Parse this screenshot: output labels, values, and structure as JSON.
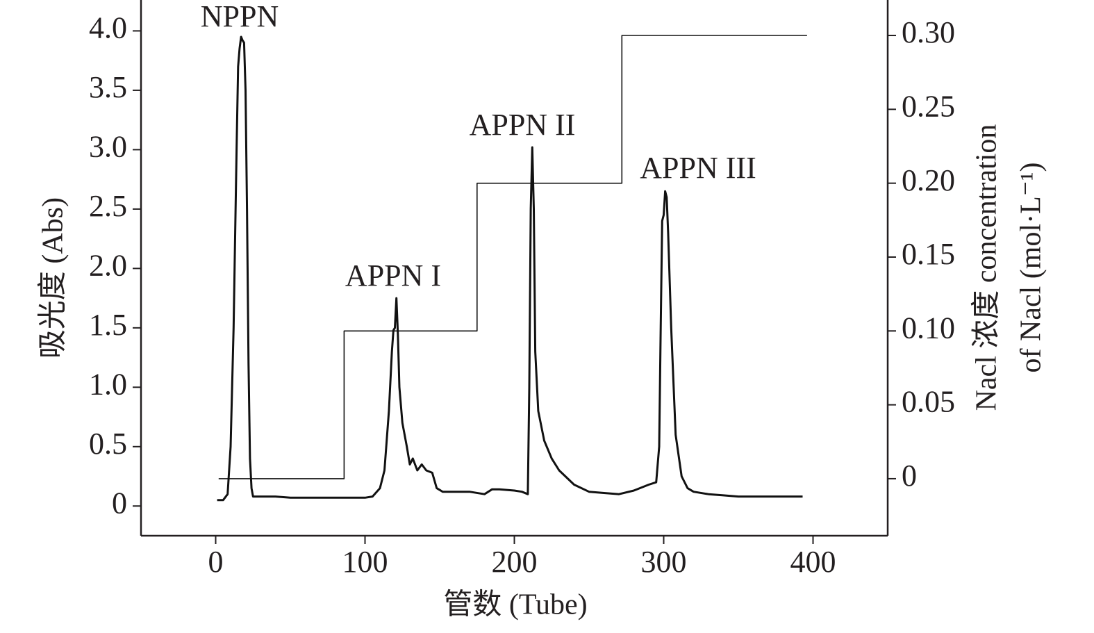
{
  "chart_data": {
    "type": "line",
    "x_label": "管数 (Tube)",
    "y_label": "吸光度 (Abs)",
    "y2_label": [
      "Nacl 浓度 concentration",
      "of Nacl (mol·L⁻¹)"
    ],
    "annotations": [
      "NPPN",
      "APPN I",
      "APPN II",
      "APPN III"
    ],
    "xlim": [
      -50,
      450
    ],
    "xticks": [
      0,
      100,
      200,
      300,
      400
    ],
    "ylim": [
      -0.25,
      4.26
    ],
    "yticks": [
      0,
      0.5,
      {
        "value": 1,
        "label": "1.0"
      },
      1.5,
      {
        "value": 2,
        "label": "2.0"
      },
      2.5,
      {
        "value": 3,
        "label": "3.0"
      },
      3.5,
      {
        "value": 4,
        "label": "4.0"
      }
    ],
    "y2lim": [
      -0.0386,
      0.324
    ],
    "y2ticks": [
      0,
      0.05,
      {
        "value": 0.1,
        "label": "0.10"
      },
      0.15,
      {
        "value": 0.2,
        "label": "0.20"
      },
      0.25,
      {
        "value": 0.3,
        "label": "0.30"
      }
    ],
    "series": [
      {
        "color": "#111111",
        "x": [
          1,
          5,
          8,
          10,
          12,
          14,
          15,
          16,
          17,
          18,
          19,
          20,
          21,
          22,
          23,
          24,
          25,
          30,
          40,
          50,
          60,
          70,
          80,
          90,
          100,
          105,
          110,
          113,
          116,
          118,
          119,
          120,
          121,
          122,
          123,
          125,
          128,
          130,
          132,
          135,
          138,
          141,
          145,
          148,
          152,
          160,
          170,
          180,
          185,
          190,
          200,
          205,
          209,
          210,
          211,
          212,
          213,
          214,
          216,
          220,
          225,
          230,
          240,
          250,
          260,
          270,
          280,
          290,
          295,
          297,
          298,
          299,
          300,
          301,
          302,
          303,
          305,
          308,
          312,
          316,
          320,
          330,
          340,
          350,
          360,
          370,
          380,
          393
        ],
        "values": [
          0.05,
          0.05,
          0.1,
          0.5,
          1.5,
          3.0,
          3.7,
          3.85,
          3.95,
          3.92,
          3.9,
          3.5,
          2.5,
          1.2,
          0.4,
          0.15,
          0.08,
          0.08,
          0.08,
          0.07,
          0.07,
          0.07,
          0.07,
          0.07,
          0.07,
          0.08,
          0.15,
          0.3,
          0.8,
          1.3,
          1.48,
          1.5,
          1.75,
          1.45,
          1.0,
          0.7,
          0.5,
          0.35,
          0.4,
          0.3,
          0.35,
          0.3,
          0.28,
          0.15,
          0.12,
          0.12,
          0.12,
          0.1,
          0.14,
          0.14,
          0.13,
          0.12,
          0.1,
          1.0,
          2.5,
          3.02,
          2.5,
          1.3,
          0.8,
          0.55,
          0.4,
          0.3,
          0.18,
          0.12,
          0.11,
          0.1,
          0.13,
          0.18,
          0.2,
          0.5,
          1.5,
          2.4,
          2.45,
          2.65,
          2.6,
          2.3,
          1.5,
          0.6,
          0.25,
          0.15,
          0.12,
          0.1,
          0.09,
          0.08,
          0.08,
          0.08,
          0.08,
          0.08
        ]
      },
      {
        "color": "#111111",
        "axis": "y2",
        "x": [
          2,
          86,
          86,
          175,
          175,
          272,
          272,
          396
        ],
        "values": [
          0,
          0,
          0.1,
          0.1,
          0.2,
          0.2,
          0.3,
          0.3
        ]
      }
    ]
  }
}
